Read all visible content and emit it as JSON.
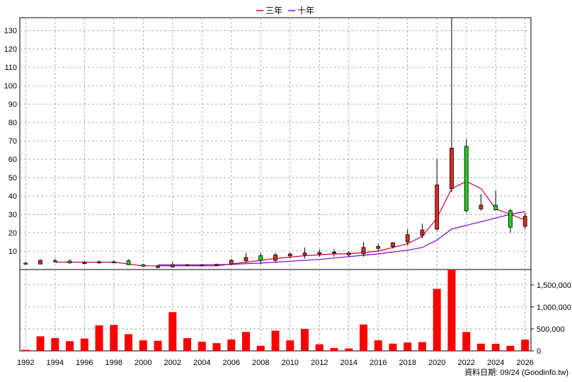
{
  "legend": [
    {
      "name": "三年",
      "color": "#c8003c"
    },
    {
      "name": "十年",
      "color": "#7a00cc"
    }
  ],
  "source_text": "資料日期: 09/24  (Goodinfo.tw)",
  "colors": {
    "up": "#e0262a",
    "down": "#22cc22",
    "volume": "#ff0000",
    "grid": "#9a9a9a"
  },
  "chart_data": [
    {
      "type": "candlestick",
      "title": "",
      "ylim": [
        0,
        137
      ],
      "ytick_values": [
        10,
        20,
        30,
        40,
        50,
        60,
        70,
        80,
        90,
        100,
        110,
        120,
        130
      ],
      "xlim": [
        1991.6,
        2026.4
      ],
      "xtick_labels": [
        "1992",
        "1994",
        "1996",
        "1998",
        "2000",
        "2002",
        "2004",
        "2006",
        "2008",
        "2010",
        "2012",
        "2014",
        "2016",
        "2018",
        "2020",
        "2022",
        "2024",
        "2026"
      ],
      "grid": true,
      "legend_position": "top-center",
      "candles": [
        {
          "year": 1992,
          "open": 3.5,
          "high": 4.0,
          "low": 3.0,
          "close": 3.2
        },
        {
          "year": 1993,
          "open": 3.0,
          "high": 5.5,
          "low": 2.8,
          "close": 5.0
        },
        {
          "year": 1994,
          "open": 4.8,
          "high": 6.0,
          "low": 4.0,
          "close": 4.6
        },
        {
          "year": 1995,
          "open": 4.6,
          "high": 5.5,
          "low": 3.2,
          "close": 3.6
        },
        {
          "year": 1996,
          "open": 3.6,
          "high": 4.5,
          "low": 3.0,
          "close": 3.8
        },
        {
          "year": 1997,
          "open": 3.8,
          "high": 5.0,
          "low": 3.0,
          "close": 4.2
        },
        {
          "year": 1998,
          "open": 4.2,
          "high": 5.0,
          "low": 3.5,
          "close": 4.0
        },
        {
          "year": 1999,
          "open": 4.8,
          "high": 5.5,
          "low": 2.3,
          "close": 2.6
        },
        {
          "year": 2000,
          "open": 2.6,
          "high": 3.2,
          "low": 1.3,
          "close": 1.8
        },
        {
          "year": 2001,
          "open": 1.6,
          "high": 2.2,
          "low": 1.0,
          "close": 1.4
        },
        {
          "year": 2002,
          "open": 1.4,
          "high": 4.2,
          "low": 1.2,
          "close": 2.6
        },
        {
          "year": 2003,
          "open": 2.6,
          "high": 3.0,
          "low": 2.0,
          "close": 2.4
        },
        {
          "year": 2004,
          "open": 2.4,
          "high": 3.0,
          "low": 2.0,
          "close": 2.5
        },
        {
          "year": 2005,
          "open": 2.5,
          "high": 3.2,
          "low": 2.0,
          "close": 2.8
        },
        {
          "year": 2006,
          "open": 2.8,
          "high": 5.8,
          "low": 2.4,
          "close": 5.0
        },
        {
          "year": 2007,
          "open": 4.8,
          "high": 9.0,
          "low": 3.5,
          "close": 6.5
        },
        {
          "year": 2008,
          "open": 7.5,
          "high": 9.0,
          "low": 3.0,
          "close": 5.0
        },
        {
          "year": 2009,
          "open": 5.0,
          "high": 9.0,
          "low": 4.0,
          "close": 8.0
        },
        {
          "year": 2010,
          "open": 7.5,
          "high": 9.0,
          "low": 6.0,
          "close": 8.5
        },
        {
          "year": 2011,
          "open": 8.0,
          "high": 12.0,
          "low": 6.0,
          "close": 9.0
        },
        {
          "year": 2012,
          "open": 8.5,
          "high": 11.0,
          "low": 7.0,
          "close": 9.2
        },
        {
          "year": 2013,
          "open": 9.0,
          "high": 11.0,
          "low": 7.0,
          "close": 9.5
        },
        {
          "year": 2014,
          "open": 8.0,
          "high": 10.0,
          "low": 7.0,
          "close": 9.0
        },
        {
          "year": 2015,
          "open": 8.5,
          "high": 15.0,
          "low": 7.0,
          "close": 12.0
        },
        {
          "year": 2016,
          "open": 11.5,
          "high": 14.0,
          "low": 10.0,
          "close": 12.5
        },
        {
          "year": 2017,
          "open": 12.5,
          "high": 15.0,
          "low": 11.5,
          "close": 14.5
        },
        {
          "year": 2018,
          "open": 15.0,
          "high": 22.0,
          "low": 13.0,
          "close": 19.0
        },
        {
          "year": 2019,
          "open": 18.5,
          "high": 25.0,
          "low": 17.0,
          "close": 21.5
        },
        {
          "year": 2020,
          "open": 22.0,
          "high": 60.0,
          "low": 21.0,
          "close": 46.0
        },
        {
          "year": 2021,
          "open": 44.0,
          "high": 137.0,
          "low": 42.0,
          "close": 66.0
        },
        {
          "year": 2022,
          "open": 67.0,
          "high": 71.0,
          "low": 31.0,
          "close": 32.0
        },
        {
          "year": 2023,
          "open": 33.0,
          "high": 41.0,
          "low": 32.0,
          "close": 35.0
        },
        {
          "year": 2024,
          "open": 35.0,
          "high": 43.0,
          "low": 32.0,
          "close": 32.5
        },
        {
          "year": 2025,
          "open": 32.0,
          "high": 33.0,
          "low": 20.0,
          "close": 23.0
        },
        {
          "year": 2026,
          "open": 23.5,
          "high": 31.0,
          "low": 22.0,
          "close": 29.0
        }
      ],
      "series": [
        {
          "name": "三年",
          "values": [
            {
              "x": 1994,
              "y": 4.0
            },
            {
              "x": 1996,
              "y": 4.0
            },
            {
              "x": 1998,
              "y": 4.0
            },
            {
              "x": 2000,
              "y": 2.0
            },
            {
              "x": 2001,
              "y": 2.0
            },
            {
              "x": 2003,
              "y": 2.0
            },
            {
              "x": 2005,
              "y": 2.0
            },
            {
              "x": 2007,
              "y": 4.0
            },
            {
              "x": 2009,
              "y": 6.0
            },
            {
              "x": 2011,
              "y": 7.5
            },
            {
              "x": 2013,
              "y": 8.5
            },
            {
              "x": 2014,
              "y": 8.5
            },
            {
              "x": 2016,
              "y": 10.0
            },
            {
              "x": 2018,
              "y": 14.0
            },
            {
              "x": 2019,
              "y": 18.0
            },
            {
              "x": 2020,
              "y": 28.0
            },
            {
              "x": 2021,
              "y": 44.0
            },
            {
              "x": 2022,
              "y": 48.0
            },
            {
              "x": 2023,
              "y": 44.0
            },
            {
              "x": 2024,
              "y": 33.0
            },
            {
              "x": 2025,
              "y": 30.0
            },
            {
              "x": 2026,
              "y": 27.0
            }
          ]
        },
        {
          "name": "十年",
          "values": [
            {
              "x": 2001,
              "y": 2.5
            },
            {
              "x": 2004,
              "y": 2.5
            },
            {
              "x": 2006,
              "y": 2.8
            },
            {
              "x": 2008,
              "y": 3.5
            },
            {
              "x": 2010,
              "y": 4.5
            },
            {
              "x": 2012,
              "y": 5.5
            },
            {
              "x": 2014,
              "y": 7.0
            },
            {
              "x": 2016,
              "y": 8.5
            },
            {
              "x": 2018,
              "y": 10.5
            },
            {
              "x": 2019,
              "y": 12.0
            },
            {
              "x": 2020,
              "y": 16.0
            },
            {
              "x": 2021,
              "y": 22.0
            },
            {
              "x": 2022,
              "y": 24.0
            },
            {
              "x": 2023,
              "y": 26.0
            },
            {
              "x": 2024,
              "y": 28.0
            },
            {
              "x": 2025,
              "y": 30.0
            },
            {
              "x": 2026,
              "y": 31.5
            }
          ]
        }
      ]
    },
    {
      "type": "bar",
      "ylim": [
        0,
        1850000
      ],
      "ytick_labels": [
        "0",
        "500,000",
        "1,000,000",
        "1,500,000"
      ],
      "ytick_values": [
        0,
        500000,
        1000000,
        1500000
      ],
      "categories": [
        1992,
        1993,
        1994,
        1995,
        1996,
        1997,
        1998,
        1999,
        2000,
        2001,
        2002,
        2003,
        2004,
        2005,
        2006,
        2007,
        2008,
        2009,
        2010,
        2011,
        2012,
        2013,
        2014,
        2015,
        2016,
        2017,
        2018,
        2019,
        2020,
        2021,
        2022,
        2023,
        2024,
        2025,
        2026
      ],
      "values": [
        25000,
        330000,
        290000,
        220000,
        280000,
        580000,
        590000,
        380000,
        240000,
        230000,
        880000,
        290000,
        210000,
        175000,
        260000,
        430000,
        115000,
        460000,
        240000,
        500000,
        150000,
        65000,
        55000,
        600000,
        240000,
        165000,
        190000,
        200000,
        1410000,
        1850000,
        430000,
        165000,
        160000,
        115000,
        255000
      ]
    }
  ]
}
